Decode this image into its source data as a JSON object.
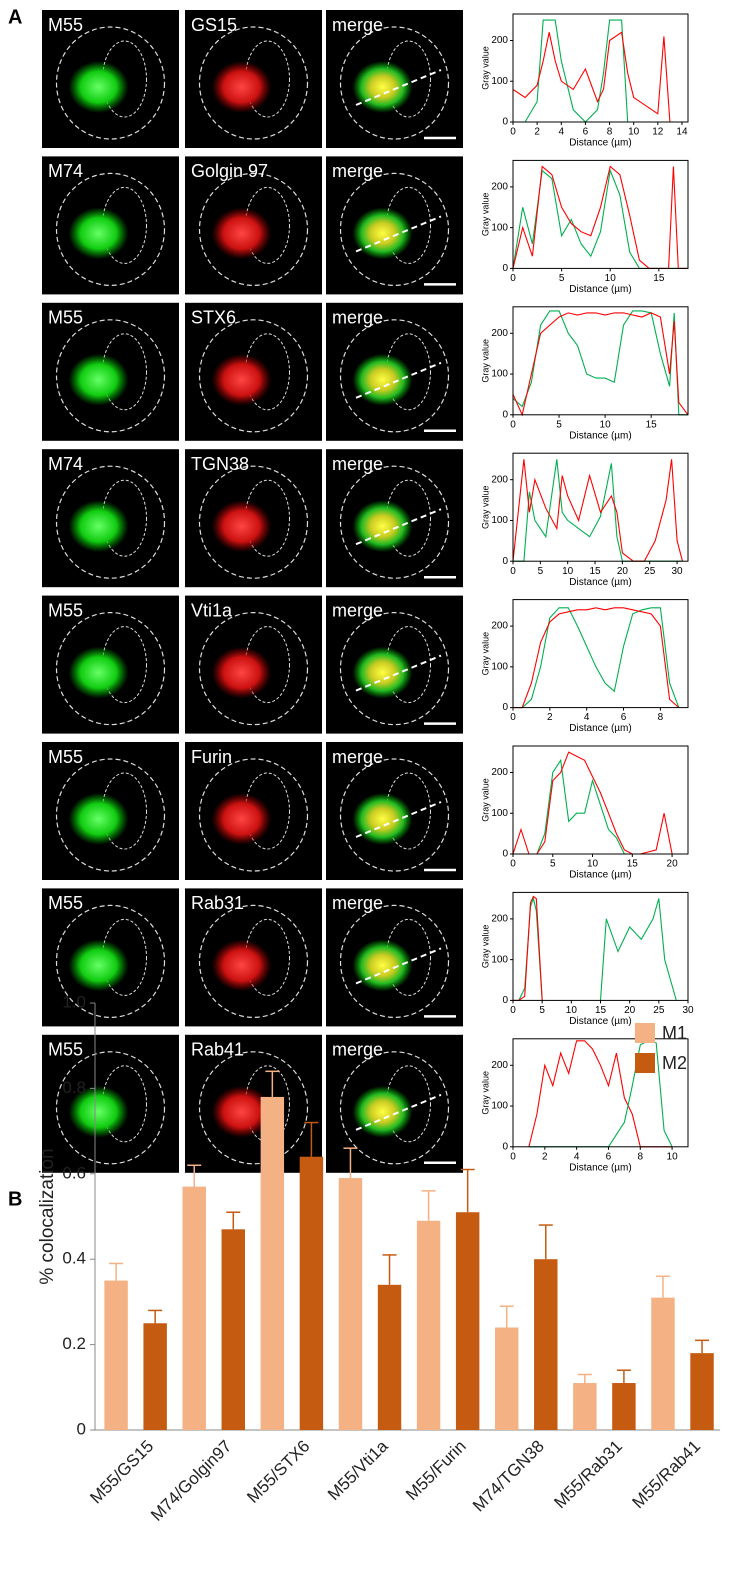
{
  "panel_labels": [
    "A",
    "B"
  ],
  "image_rows": [
    {
      "labels": [
        "M55",
        "GS15",
        "merge"
      ]
    },
    {
      "labels": [
        "M74",
        "Golgin 97",
        "merge"
      ]
    },
    {
      "labels": [
        "M55",
        "STX6",
        "merge"
      ]
    },
    {
      "labels": [
        "M74",
        "TGN38",
        "merge"
      ]
    },
    {
      "labels": [
        "M55",
        "Vti1a",
        "merge"
      ]
    },
    {
      "labels": [
        "M55",
        "Furin",
        "merge"
      ]
    },
    {
      "labels": [
        "M55",
        "Rab31",
        "merge"
      ]
    },
    {
      "labels": [
        "M55",
        "Rab41",
        "merge"
      ]
    }
  ],
  "chart_data": [
    {
      "type": "line",
      "xlabel": "Distance (µm)",
      "ylabel": "Gray value",
      "x": [
        0,
        1,
        2,
        2.5,
        3,
        3.5,
        4,
        5,
        6,
        7,
        7.5,
        8,
        9,
        9.5,
        10,
        11,
        12,
        12.5,
        13,
        14
      ],
      "series": [
        {
          "color": "#00b050",
          "values": [
            0,
            0,
            50,
            250,
            250,
            250,
            150,
            30,
            0,
            30,
            120,
            250,
            250,
            0,
            0,
            0,
            0,
            0,
            0,
            0
          ]
        },
        {
          "color": "#ff0000",
          "values": [
            80,
            60,
            90,
            150,
            220,
            150,
            100,
            80,
            130,
            50,
            80,
            200,
            220,
            120,
            60,
            40,
            20,
            210,
            0,
            0
          ]
        }
      ],
      "xlim": [
        0,
        14.5
      ],
      "xticks": [
        0,
        2,
        4,
        6,
        8,
        10,
        12,
        14
      ],
      "ylim": [
        0,
        265
      ],
      "yticks": [
        0,
        100,
        200
      ]
    },
    {
      "type": "line",
      "xlabel": "Distance (µm)",
      "ylabel": "Gray value",
      "x": [
        0,
        1,
        2,
        3,
        4,
        5,
        6,
        7,
        8,
        9,
        10,
        11,
        12,
        13,
        14,
        15,
        16,
        16.5,
        17,
        18
      ],
      "series": [
        {
          "color": "#00b050",
          "values": [
            0,
            150,
            60,
            240,
            220,
            80,
            120,
            60,
            30,
            90,
            240,
            180,
            40,
            0,
            0,
            0,
            0,
            0,
            0,
            0
          ]
        },
        {
          "color": "#ff0000",
          "values": [
            0,
            100,
            30,
            250,
            230,
            150,
            110,
            90,
            80,
            150,
            250,
            230,
            130,
            20,
            0,
            0,
            0,
            250,
            0,
            0
          ]
        }
      ],
      "xlim": [
        0,
        18
      ],
      "xticks": [
        0,
        5,
        10,
        15
      ],
      "ylim": [
        0,
        265
      ],
      "yticks": [
        0,
        100,
        200
      ]
    },
    {
      "type": "line",
      "xlabel": "Distance (µm)",
      "ylabel": "Gray value",
      "x": [
        0,
        1,
        2,
        3,
        4,
        5,
        6,
        7,
        8,
        9,
        10,
        11,
        12,
        13,
        14,
        15,
        16,
        17,
        17.5,
        18,
        19
      ],
      "series": [
        {
          "color": "#00b050",
          "values": [
            40,
            20,
            80,
            220,
            255,
            255,
            200,
            170,
            100,
            90,
            90,
            80,
            220,
            255,
            255,
            250,
            150,
            70,
            250,
            0,
            0
          ]
        },
        {
          "color": "#ff0000",
          "values": [
            50,
            0,
            100,
            200,
            220,
            240,
            250,
            245,
            250,
            250,
            245,
            250,
            250,
            245,
            240,
            250,
            240,
            100,
            230,
            30,
            0
          ]
        }
      ],
      "xlim": [
        0,
        19
      ],
      "xticks": [
        0,
        5,
        10,
        15
      ],
      "ylim": [
        0,
        265
      ],
      "yticks": [
        0,
        100,
        200
      ]
    },
    {
      "type": "line",
      "xlabel": "Distance (µm)",
      "ylabel": "Gray value",
      "x": [
        0,
        2,
        3,
        4,
        6,
        8,
        9,
        10,
        12,
        14,
        16,
        18,
        19,
        20,
        22,
        24,
        26,
        28,
        29,
        30,
        31
      ],
      "series": [
        {
          "color": "#00b050",
          "values": [
            0,
            0,
            170,
            100,
            60,
            250,
            120,
            100,
            80,
            60,
            110,
            240,
            60,
            0,
            0,
            0,
            0,
            0,
            0,
            0,
            0
          ]
        },
        {
          "color": "#ff0000",
          "values": [
            0,
            250,
            120,
            200,
            130,
            80,
            210,
            160,
            100,
            210,
            120,
            160,
            120,
            20,
            0,
            0,
            50,
            150,
            250,
            50,
            0
          ]
        }
      ],
      "xlim": [
        0,
        32
      ],
      "xticks": [
        0,
        5,
        10,
        15,
        20,
        25,
        30
      ],
      "ylim": [
        0,
        265
      ],
      "yticks": [
        0,
        100,
        200
      ]
    },
    {
      "type": "line",
      "xlabel": "Distance (µm)",
      "ylabel": "Gray value",
      "x": [
        0,
        0.5,
        1,
        1.5,
        2,
        2.5,
        3,
        3.5,
        4,
        4.5,
        5,
        5.5,
        6,
        6.5,
        7,
        7.5,
        8,
        8.5,
        9
      ],
      "series": [
        {
          "color": "#00b050",
          "values": [
            0,
            0,
            20,
            100,
            220,
            245,
            245,
            200,
            150,
            100,
            60,
            40,
            150,
            230,
            240,
            245,
            245,
            60,
            0
          ]
        },
        {
          "color": "#ff0000",
          "values": [
            0,
            0,
            60,
            160,
            210,
            230,
            235,
            240,
            240,
            245,
            240,
            245,
            245,
            240,
            235,
            230,
            200,
            20,
            0
          ]
        }
      ],
      "xlim": [
        0,
        9.5
      ],
      "xticks": [
        0,
        2,
        4,
        6,
        8
      ],
      "ylim": [
        0,
        265
      ],
      "yticks": [
        0,
        100,
        200
      ]
    },
    {
      "type": "line",
      "xlabel": "Distance (µm)",
      "ylabel": "Gray value",
      "x": [
        0,
        1,
        2,
        3,
        4,
        5,
        6,
        7,
        8,
        9,
        10,
        11,
        12,
        13,
        14,
        15,
        16,
        18,
        19,
        20
      ],
      "series": [
        {
          "color": "#00b050",
          "values": [
            0,
            0,
            0,
            0,
            50,
            200,
            230,
            80,
            100,
            100,
            180,
            120,
            60,
            40,
            0,
            0,
            0,
            0,
            0,
            0
          ]
        },
        {
          "color": "#ff0000",
          "values": [
            0,
            60,
            0,
            0,
            30,
            180,
            200,
            250,
            240,
            230,
            190,
            150,
            100,
            50,
            10,
            0,
            0,
            10,
            100,
            0
          ]
        }
      ],
      "xlim": [
        0,
        22
      ],
      "xticks": [
        0,
        5,
        10,
        15,
        20
      ],
      "ylim": [
        0,
        265
      ],
      "yticks": [
        0,
        100,
        200
      ]
    },
    {
      "type": "line",
      "xlabel": "Distance (µm)",
      "ylabel": "Gray value",
      "x": [
        0,
        1,
        2,
        3,
        3.5,
        4,
        5,
        10,
        15,
        16,
        18,
        20,
        22,
        24,
        25,
        26,
        28
      ],
      "series": [
        {
          "color": "#00b050",
          "values": [
            0,
            0,
            30,
            230,
            250,
            220,
            0,
            null,
            0,
            200,
            120,
            180,
            150,
            200,
            250,
            100,
            0
          ]
        },
        {
          "color": "#ff0000",
          "values": [
            0,
            0,
            10,
            240,
            255,
            250,
            0,
            null,
            null,
            null,
            null,
            null,
            null,
            null,
            null,
            null,
            null
          ]
        }
      ],
      "xlim": [
        0,
        30
      ],
      "xticks": [
        0,
        5,
        10,
        15,
        20,
        25,
        30
      ],
      "ylim": [
        0,
        265
      ],
      "yticks": [
        0,
        100,
        200
      ]
    },
    {
      "type": "line",
      "xlabel": "Distance (µm)",
      "ylabel": "Gray value",
      "x": [
        1,
        1.5,
        2,
        2.5,
        3,
        3.5,
        4,
        4.5,
        5,
        5.5,
        6,
        6.5,
        7,
        7.5,
        8,
        8.5,
        9,
        9.5,
        10
      ],
      "series": [
        {
          "color": "#ff0000",
          "values": [
            0,
            80,
            200,
            150,
            230,
            180,
            260,
            260,
            240,
            200,
            150,
            230,
            120,
            80,
            0,
            0,
            0,
            0,
            0
          ]
        },
        {
          "color": "#00b050",
          "values": [
            0,
            0,
            0,
            0,
            0,
            0,
            0,
            0,
            0,
            0,
            0,
            30,
            60,
            150,
            250,
            260,
            255,
            40,
            0
          ]
        }
      ],
      "xlim": [
        0,
        11
      ],
      "xticks": [
        0,
        2,
        4,
        6,
        8,
        10
      ],
      "ylim": [
        0,
        265
      ],
      "yticks": [
        0,
        100,
        200
      ]
    },
    {
      "type": "bar",
      "ylabel": "% colocalization",
      "categories": [
        "M55/GS15",
        "M74/Golgin97",
        "M55/STX6",
        "M55/Vti1a",
        "M55/Furin",
        "M74/TGN38",
        "M55/Rab31",
        "M55/Rab41"
      ],
      "series": [
        {
          "name": "M1",
          "color": "#f4b183",
          "values": [
            0.35,
            0.57,
            0.78,
            0.59,
            0.49,
            0.24,
            0.11,
            0.31
          ],
          "errors": [
            0.04,
            0.05,
            0.06,
            0.07,
            0.07,
            0.05,
            0.02,
            0.05
          ]
        },
        {
          "name": "M2",
          "color": "#c55a11",
          "values": [
            0.25,
            0.47,
            0.64,
            0.34,
            0.51,
            0.4,
            0.11,
            0.18
          ],
          "errors": [
            0.03,
            0.04,
            0.08,
            0.07,
            0.1,
            0.08,
            0.03,
            0.03
          ]
        }
      ],
      "ylim": [
        0,
        1
      ],
      "yticks": [
        0,
        0.2,
        0.4,
        0.6,
        0.8,
        {
          "value": 1,
          "label": "1.0"
        }
      ],
      "legend": "upper right"
    }
  ]
}
